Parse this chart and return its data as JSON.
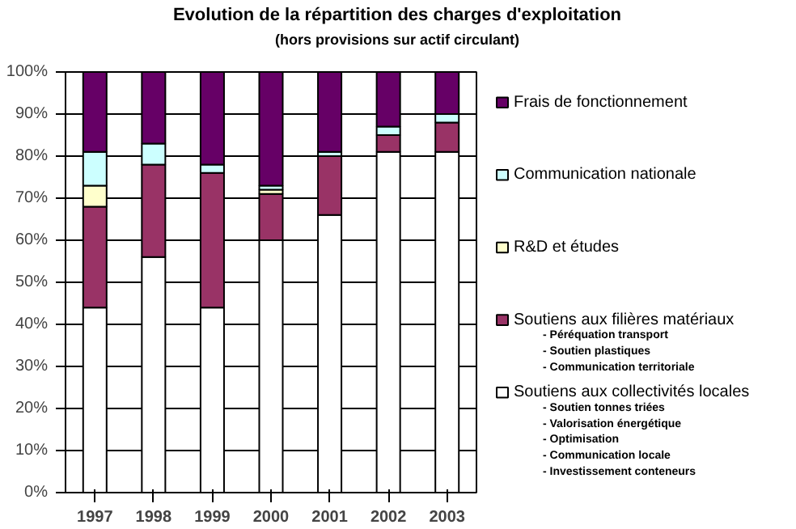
{
  "chart_data": {
    "type": "bar",
    "stacked": true,
    "title": "Evolution de la répartition des charges d'exploitation",
    "subtitle": "(hors provisions sur actif circulant)",
    "categories": [
      "1997",
      "1998",
      "1999",
      "2000",
      "2001",
      "2002",
      "2003"
    ],
    "series": [
      {
        "name": "Soutiens aux collectivités locales",
        "color": "#ffffff",
        "values": [
          44,
          56,
          44,
          60,
          66,
          81,
          81
        ]
      },
      {
        "name": "Soutiens aux filières matériaux",
        "color": "#993366",
        "values": [
          24,
          22,
          32,
          11,
          14,
          4,
          7
        ]
      },
      {
        "name": "R&D et études",
        "color": "#ffffcc",
        "values": [
          5,
          0,
          0,
          1,
          0,
          0,
          0
        ]
      },
      {
        "name": "Communication nationale",
        "color": "#ccffff",
        "values": [
          8,
          5,
          2,
          1,
          1,
          2,
          2
        ]
      },
      {
        "name": "Frais de fonctionnement",
        "color": "#660066",
        "values": [
          19,
          17,
          22,
          27,
          19,
          13,
          10
        ]
      }
    ],
    "ylim": [
      0,
      100
    ],
    "yticks": [
      {
        "value": 0,
        "label": "0%"
      },
      {
        "value": 10,
        "label": "10%"
      },
      {
        "value": 20,
        "label": "20%"
      },
      {
        "value": 30,
        "label": "30%"
      },
      {
        "value": 40,
        "label": "40%"
      },
      {
        "value": 50,
        "label": "50%"
      },
      {
        "value": 60,
        "label": "60%"
      },
      {
        "value": 70,
        "label": "70%"
      },
      {
        "value": 80,
        "label": "80%"
      },
      {
        "value": 90,
        "label": "90%"
      },
      {
        "value": 100,
        "label": "100%"
      }
    ],
    "grid": "y",
    "legend": "right",
    "annotations": [
      "- Péréquation transport",
      "- Soutien plastiques",
      "- Communication territoriale",
      "- Soutien tonnes triées",
      "- Valorisation énergétique",
      "- Optimisation",
      "- Communication locale",
      "- Investissement conteneurs"
    ]
  }
}
